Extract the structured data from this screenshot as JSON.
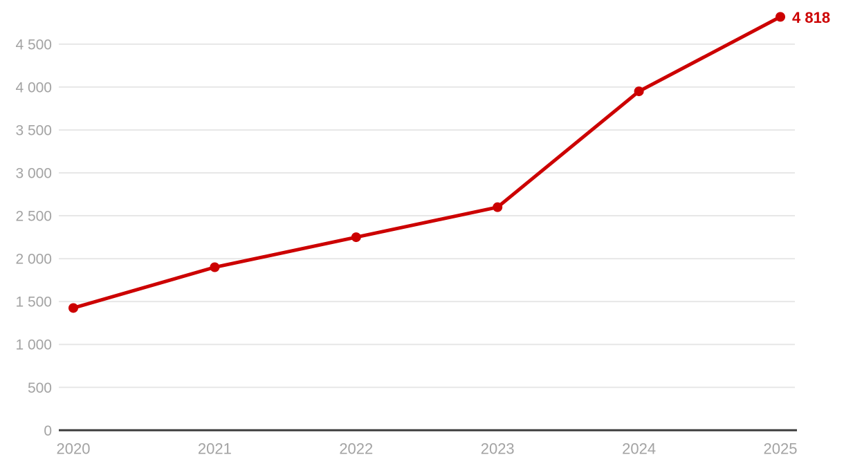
{
  "chart_data": {
    "type": "line",
    "categories": [
      "2020",
      "2021",
      "2022",
      "2023",
      "2024",
      "2025"
    ],
    "series": [
      {
        "name": "value",
        "values": [
          1425,
          1900,
          2250,
          2600,
          3950,
          4818
        ]
      }
    ],
    "title": "",
    "xlabel": "",
    "ylabel": "",
    "ylim": [
      0,
      4850
    ],
    "ytick_step": 500,
    "ytick_labels": [
      "0",
      "500",
      "1 000",
      "1 500",
      "2 000",
      "2 500",
      "3 000",
      "3 500",
      "4 000",
      "4 500"
    ],
    "grid": true,
    "legend": false,
    "annotations": [
      {
        "text": "4 818",
        "point_index": 5
      }
    ],
    "colors": {
      "line": "#cc0000",
      "marker": "#cc0000",
      "annotation_text": "#cc0000",
      "grid": "#e7e7e7",
      "axis": "#3d3d3d",
      "tick_text": "#a3a3a3"
    }
  }
}
